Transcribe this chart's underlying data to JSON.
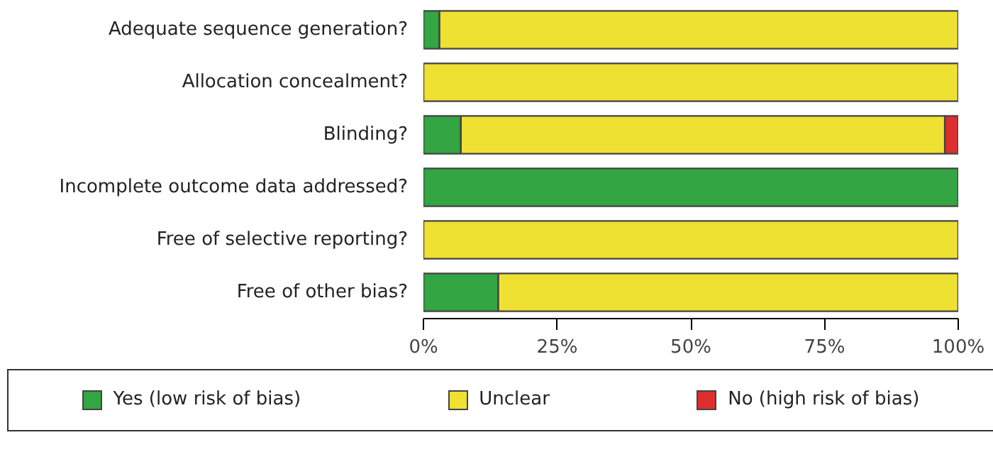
{
  "chart_data": {
    "type": "bar",
    "orientation": "horizontal",
    "stacked": true,
    "categories": [
      "Adequate sequence generation?",
      "Allocation concealment?",
      "Blinding?",
      "Incomplete outcome data addressed?",
      "Free of selective reporting?",
      "Free of other bias?"
    ],
    "series": [
      {
        "name": "Yes (low risk of bias)",
        "color": "#33a542",
        "values": [
          3,
          0,
          7,
          100,
          0,
          14
        ]
      },
      {
        "name": "Unclear",
        "color": "#efe132",
        "values": [
          97,
          100,
          90.5,
          0,
          100,
          86
        ]
      },
      {
        "name": "No (high risk of bias)",
        "color": "#dd2f2f",
        "values": [
          0,
          0,
          2.5,
          0,
          0,
          0
        ]
      }
    ],
    "xlim": [
      0,
      100
    ],
    "xticks": [
      {
        "value": 0,
        "label": "0%"
      },
      {
        "value": 25,
        "label": "25%"
      },
      {
        "value": 50,
        "label": "50%"
      },
      {
        "value": 75,
        "label": "75%"
      },
      {
        "value": 100,
        "label": "100%"
      }
    ],
    "grid": false,
    "legend": "bottom"
  }
}
